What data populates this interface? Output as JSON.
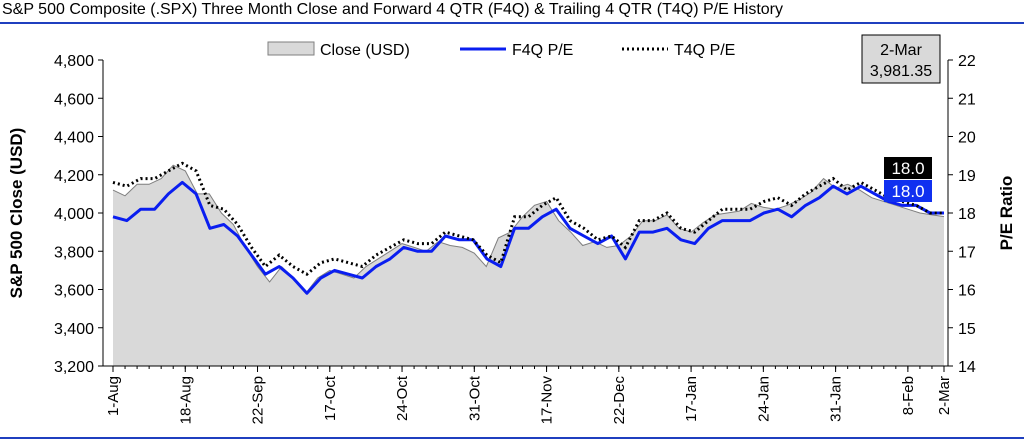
{
  "title": "S&P 500 Composite (.SPX) Three Month Close and Forward 4 QTR (F4Q) & Trailing 4 QTR (T4Q) P/E History",
  "colors": {
    "rule": "#1f3fbf",
    "area_fill": "#d9d9d9",
    "area_stroke": "#7f7f7f",
    "f4q": "#0a1ef0",
    "t4q": "#000000",
    "t4q_badge": "#000000",
    "f4q_badge": "#1030f0"
  },
  "chart_data": {
    "type": "line",
    "ylabel": "S&P 500 Close (USD)",
    "y2label": "P/E Ratio",
    "ylim": [
      3200,
      4800
    ],
    "y2lim": [
      14,
      22
    ],
    "yticks": [
      "3,200",
      "3,400",
      "3,600",
      "3,800",
      "4,000",
      "4,200",
      "4,400",
      "4,600",
      "4,800"
    ],
    "y2ticks": [
      "14",
      "15",
      "16",
      "17",
      "18",
      "19",
      "20",
      "21",
      "22"
    ],
    "xtick_labels": [
      "1-Aug",
      "18-Aug",
      "22-Sep",
      "17-Oct",
      "24-Oct",
      "31-Oct",
      "17-Nov",
      "22-Dec",
      "17-Jan",
      "24-Jan",
      "31-Jan",
      "8-Feb",
      "2-Mar"
    ],
    "xtick_index": [
      0,
      6,
      12,
      18,
      24,
      30,
      36,
      42,
      48,
      54,
      60,
      66,
      72
    ],
    "grid": false,
    "legend_position": "top",
    "series": [
      {
        "name": "Close (USD)",
        "type": "area",
        "axis": "left",
        "values": [
          4120,
          4090,
          4150,
          4150,
          4180,
          4250,
          4220,
          4100,
          4100,
          4000,
          3940,
          3820,
          3720,
          3640,
          3720,
          3660,
          3580,
          3660,
          3700,
          3680,
          3660,
          3720,
          3760,
          3800,
          3840,
          3820,
          3800,
          3850,
          3830,
          3820,
          3790,
          3720,
          3870,
          3900,
          3980,
          4040,
          4060,
          3960,
          3900,
          3830,
          3850,
          3820,
          3830,
          3880,
          3960,
          3960,
          3990,
          3920,
          3900,
          3950,
          3990,
          4000,
          4010,
          4050,
          4030,
          4020,
          4040,
          4070,
          4110,
          4180,
          4130,
          4150,
          4120,
          4080,
          4060,
          4040,
          4020,
          4000,
          3990,
          3981
        ]
      },
      {
        "name": "F4Q P/E",
        "type": "line",
        "axis": "right",
        "values": [
          17.9,
          17.8,
          18.1,
          18.1,
          18.5,
          18.8,
          18.5,
          17.6,
          17.7,
          17.4,
          16.9,
          16.4,
          16.6,
          16.3,
          15.9,
          16.3,
          16.5,
          16.4,
          16.3,
          16.6,
          16.8,
          17.1,
          17.0,
          17.0,
          17.4,
          17.3,
          17.3,
          16.8,
          16.6,
          17.6,
          17.6,
          17.9,
          18.1,
          17.6,
          17.4,
          17.2,
          17.4,
          16.8,
          17.5,
          17.5,
          17.6,
          17.3,
          17.2,
          17.6,
          17.8,
          17.8,
          17.8,
          18.0,
          18.1,
          17.9,
          18.2,
          18.4,
          18.7,
          18.5,
          18.7,
          18.5,
          18.3,
          18.2,
          18.2,
          18.0,
          18.0
        ]
      },
      {
        "name": "T4Q P/E",
        "type": "line",
        "axis": "right",
        "values": [
          18.8,
          18.7,
          18.9,
          18.9,
          19.1,
          19.3,
          19.1,
          18.2,
          18.1,
          17.7,
          17.1,
          16.6,
          16.9,
          16.6,
          16.4,
          16.7,
          16.8,
          16.7,
          16.6,
          16.9,
          17.1,
          17.3,
          17.2,
          17.2,
          17.5,
          17.4,
          17.3,
          16.9,
          16.7,
          17.9,
          17.9,
          18.2,
          18.4,
          17.8,
          17.6,
          17.3,
          17.4,
          17.1,
          17.8,
          17.8,
          18.0,
          17.6,
          17.5,
          17.8,
          18.1,
          18.1,
          18.1,
          18.3,
          18.4,
          18.2,
          18.5,
          18.7,
          18.9,
          18.6,
          18.8,
          18.6,
          18.4,
          18.3,
          18.2,
          18.0,
          18.0
        ]
      }
    ],
    "annotations": {
      "last_date": "2-Mar",
      "last_close": "3,981.35",
      "t4q_last": "18.0",
      "f4q_last": "18.0"
    }
  }
}
